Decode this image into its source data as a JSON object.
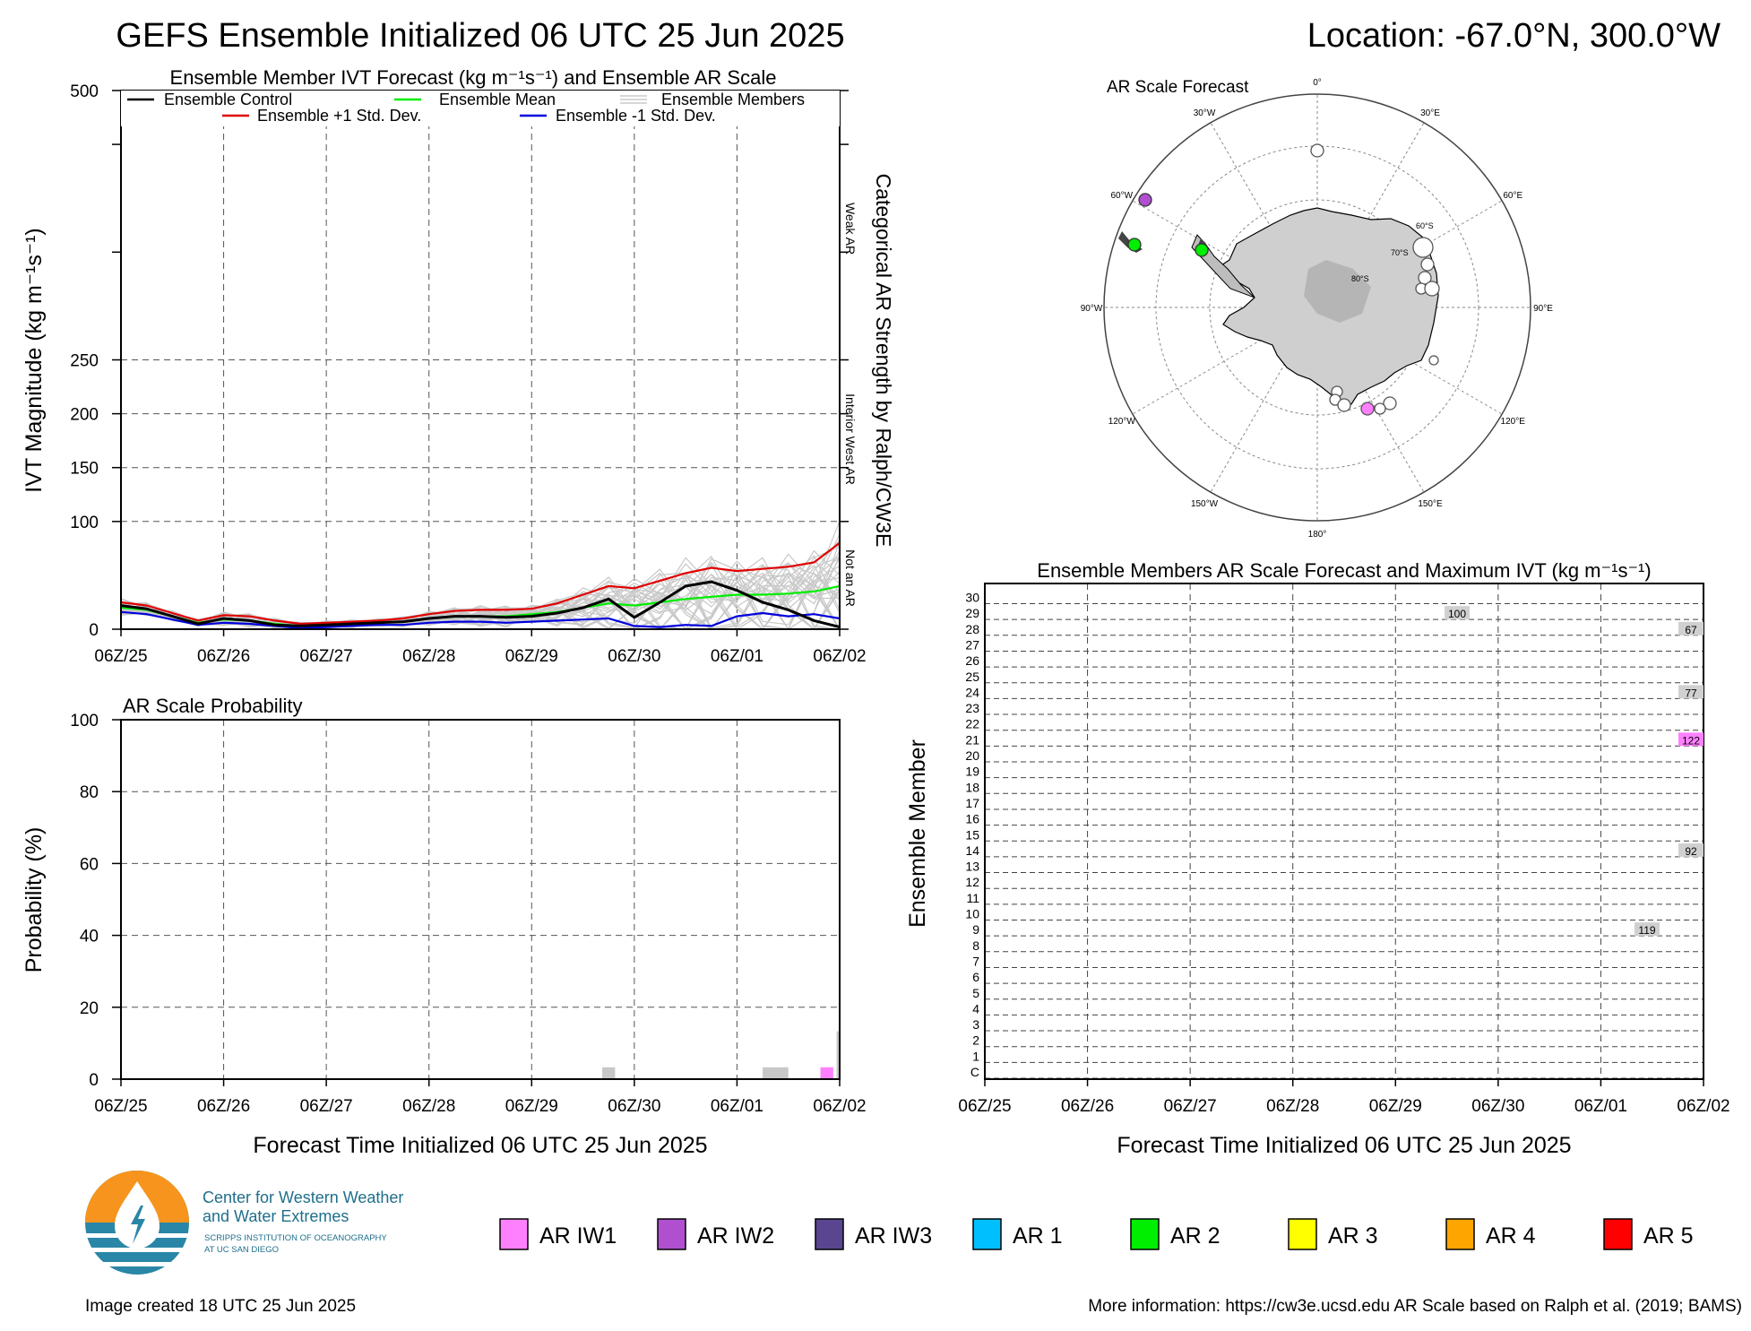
{
  "header": {
    "title": "GEFS Ensemble Initialized 06 UTC 25 Jun 2025",
    "location_label": "Location: -67.0°N, 300.0°W"
  },
  "time_ticks": [
    "06Z/25",
    "06Z/26",
    "06Z/27",
    "06Z/28",
    "06Z/29",
    "06Z/30",
    "06Z/01",
    "06Z/02"
  ],
  "chart_data": [
    {
      "id": "ivt",
      "type": "line",
      "title": "Ensemble Member IVT Forecast (kg m⁻¹s⁻¹) and Ensemble AR Scale",
      "ylabel": "IVT Magnitude (kg m⁻¹s⁻¹)",
      "right_label": "Categorical AR Strength by Ralph/CW3E",
      "x_range_days": [
        0,
        7
      ],
      "ylim": [
        0,
        500
      ],
      "y_ticks": [
        "0",
        "100",
        "150",
        "200",
        "250",
        "500"
      ],
      "category_labels": [
        "Weak AR",
        "Interior West AR",
        "Not an AR"
      ],
      "legend": [
        "Ensemble Control",
        "Ensemble Mean",
        "Ensemble Members",
        "Ensemble +1 Std. Dev.",
        "Ensemble -1 Std. Dev."
      ],
      "colors": {
        "control": "#000000",
        "mean": "#00ee00",
        "members": "#c8c8c8",
        "plus": "#e00000",
        "minus": "#0000dd"
      },
      "x_days": [
        0,
        0.25,
        0.5,
        0.75,
        1,
        1.25,
        1.5,
        1.75,
        2,
        2.25,
        2.5,
        2.75,
        3,
        3.25,
        3.5,
        3.75,
        4,
        4.25,
        4.5,
        4.75,
        5,
        5.25,
        5.5,
        5.75,
        6,
        6.25,
        6.5,
        6.75,
        7
      ],
      "series": [
        {
          "name": "Ensemble Control",
          "values": [
            22,
            19,
            12,
            5,
            10,
            8,
            4,
            3,
            4,
            5,
            6,
            7,
            10,
            12,
            12,
            11,
            12,
            15,
            20,
            28,
            11,
            25,
            40,
            44,
            36,
            25,
            18,
            8,
            2
          ]
        },
        {
          "name": "Ensemble Mean",
          "values": [
            20,
            18,
            12,
            6,
            9,
            8,
            5,
            3,
            4,
            5,
            6,
            7,
            10,
            12,
            12,
            12,
            14,
            16,
            20,
            24,
            22,
            25,
            28,
            30,
            32,
            32,
            33,
            35,
            40
          ]
        },
        {
          "name": "Ensemble +1 Std. Dev.",
          "values": [
            25,
            22,
            15,
            8,
            13,
            12,
            8,
            5,
            6,
            7,
            8,
            10,
            14,
            17,
            18,
            18,
            19,
            24,
            32,
            40,
            38,
            45,
            52,
            57,
            54,
            56,
            58,
            62,
            80
          ]
        },
        {
          "name": "Ensemble -1 Std. Dev.",
          "values": [
            16,
            14,
            9,
            4,
            6,
            5,
            3,
            1,
            2,
            3,
            4,
            4,
            6,
            7,
            7,
            6,
            7,
            8,
            9,
            10,
            3,
            2,
            4,
            3,
            12,
            15,
            12,
            14,
            10
          ]
        }
      ]
    },
    {
      "id": "prob",
      "type": "bar",
      "title": "AR Scale Probability",
      "ylabel": "Probability (%)",
      "xlabel": "Forecast Time Initialized 06 UTC 25 Jun 2025",
      "ylim": [
        0,
        100
      ],
      "y_ticks": [
        "0",
        "20",
        "40",
        "60",
        "80",
        "100"
      ],
      "bars": [
        {
          "x_day": 4.75,
          "width_day": 0.125,
          "value": 3.3,
          "category": "Interior West AR"
        },
        {
          "x_day": 6.375,
          "width_day": 0.25,
          "value": 3.3,
          "category": "Interior West AR"
        },
        {
          "x_day": 6.875,
          "width_day": 0.125,
          "value": 3.3,
          "category": "AR IW1"
        },
        {
          "x_day": 7.0,
          "width_day": 0.06,
          "value": 13.3,
          "category": "Interior West AR"
        }
      ]
    },
    {
      "id": "members",
      "type": "heatmap",
      "title": "Ensemble Members AR Scale Forecast and Maximum IVT (kg m⁻¹s⁻¹)",
      "ylabel": "Ensemble Member",
      "xlabel": "Forecast Time Initialized 06 UTC 25 Jun 2025",
      "member_labels": [
        "C",
        "1",
        "2",
        "3",
        "4",
        "5",
        "6",
        "7",
        "8",
        "9",
        "10",
        "11",
        "12",
        "13",
        "14",
        "15",
        "16",
        "17",
        "18",
        "19",
        "20",
        "21",
        "22",
        "23",
        "24",
        "25",
        "26",
        "27",
        "28",
        "29",
        "30"
      ],
      "max_ivt_labels": [
        {
          "member": "29",
          "x_day": 4.6,
          "text": "100",
          "category": "Interior West AR"
        },
        {
          "member": "28",
          "x_day": 6.95,
          "text": "67",
          "category": "Interior West AR"
        },
        {
          "member": "24",
          "x_day": 6.95,
          "text": "77",
          "category": "Interior West AR"
        },
        {
          "member": "21",
          "x_day": 6.95,
          "text": "122",
          "category": "AR IW1"
        },
        {
          "member": "14",
          "x_day": 6.95,
          "text": "92",
          "category": "Interior West AR"
        },
        {
          "member": "9",
          "x_day": 6.45,
          "text": "119",
          "category": "Interior West AR"
        }
      ]
    }
  ],
  "map": {
    "title": "AR Scale Forecast",
    "lon_labels": [
      "0°",
      "30°E",
      "60°E",
      "90°E",
      "120°E",
      "150°E",
      "180°",
      "150°W",
      "120°W",
      "90°W",
      "60°W",
      "30°W"
    ],
    "lat_labels": [
      "60°S",
      "70°S",
      "80°S"
    ]
  },
  "legend_boxes": [
    {
      "label": "AR IW1",
      "color": "#ff80ff"
    },
    {
      "label": "AR IW2",
      "color": "#b050d0"
    },
    {
      "label": "AR IW3",
      "color": "#5a4690"
    },
    {
      "label": "AR 1",
      "color": "#00bfff"
    },
    {
      "label": "AR 2",
      "color": "#00ee00"
    },
    {
      "label": "AR 3",
      "color": "#ffff00"
    },
    {
      "label": "AR 4",
      "color": "#ffa500"
    },
    {
      "label": "AR 5",
      "color": "#ff0000"
    }
  ],
  "logo": {
    "line1": "Center for Western Weather",
    "line2": "and Water Extremes",
    "line3": "SCRIPPS INSTITUTION OF OCEANOGRAPHY",
    "line4": "AT UC SAN DIEGO"
  },
  "footer": {
    "created": "Image created 18 UTC 25 Jun 2025",
    "more_info": "More information: https://cw3e.ucsd.edu AR Scale based on Ralph et al. (2019; BAMS)"
  }
}
